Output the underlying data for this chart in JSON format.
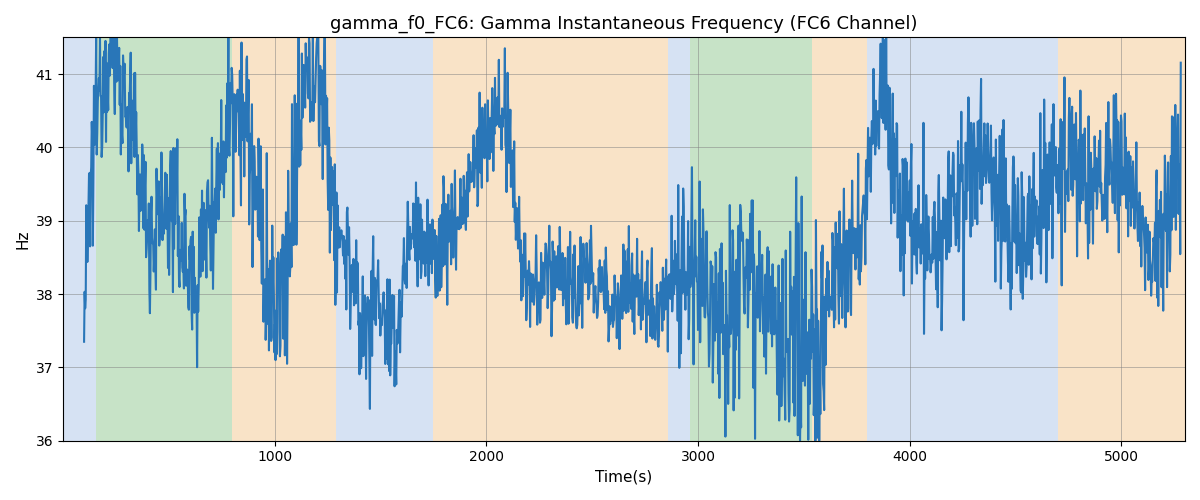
{
  "title": "gamma_f0_FC6: Gamma Instantaneous Frequency (FC6 Channel)",
  "xlabel": "Time(s)",
  "ylabel": "Hz",
  "ylim": [
    36,
    41.5
  ],
  "xlim": [
    0,
    5300
  ],
  "line_color": "#2976B8",
  "line_width": 1.5,
  "grid": true,
  "background_bands": [
    {
      "xmin": 0,
      "xmax": 155,
      "color": "#AEC6E8",
      "alpha": 0.5
    },
    {
      "xmin": 155,
      "xmax": 800,
      "color": "#90C990",
      "alpha": 0.5
    },
    {
      "xmin": 800,
      "xmax": 1290,
      "color": "#F5C990",
      "alpha": 0.5
    },
    {
      "xmin": 1290,
      "xmax": 1750,
      "color": "#AEC6E8",
      "alpha": 0.5
    },
    {
      "xmin": 1750,
      "xmax": 2860,
      "color": "#F5C990",
      "alpha": 0.5
    },
    {
      "xmin": 2860,
      "xmax": 2960,
      "color": "#AEC6E8",
      "alpha": 0.5
    },
    {
      "xmin": 2960,
      "xmax": 3540,
      "color": "#90C990",
      "alpha": 0.5
    },
    {
      "xmin": 3540,
      "xmax": 3800,
      "color": "#F5C990",
      "alpha": 0.5
    },
    {
      "xmin": 3800,
      "xmax": 4700,
      "color": "#AEC6E8",
      "alpha": 0.5
    },
    {
      "xmin": 4700,
      "xmax": 5300,
      "color": "#F5C990",
      "alpha": 0.5
    }
  ],
  "t_values": [
    100,
    200,
    290,
    370,
    430,
    480,
    530,
    580,
    630,
    680,
    730,
    790,
    850,
    890,
    950,
    1020,
    1090,
    1150,
    1220,
    1290,
    1350,
    1420,
    1490,
    1560,
    1620,
    1680,
    1740,
    1800,
    1860,
    1920,
    1980,
    2030,
    2080,
    2130,
    2180,
    2230,
    2280,
    2340,
    2400,
    2470,
    2540,
    2600,
    2660,
    2720,
    2780,
    2840,
    2900,
    2960,
    3020,
    3080,
    3140,
    3200,
    3260,
    3320,
    3380,
    3440,
    3500,
    3560,
    3620,
    3700,
    3780,
    3860,
    3940,
    4020,
    4100,
    4180,
    4260,
    4340,
    4420,
    4500,
    4580,
    4660,
    4740,
    4820,
    4900,
    4980,
    5060,
    5140,
    5220,
    5280
  ],
  "y_values": [
    37.5,
    41.2,
    40.7,
    39.5,
    38.8,
    39.2,
    39.0,
    38.5,
    38.2,
    39.0,
    39.5,
    40.6,
    40.5,
    39.8,
    38.4,
    37.8,
    39.3,
    40.8,
    40.9,
    39.0,
    38.5,
    37.5,
    38.0,
    37.2,
    38.5,
    38.8,
    38.5,
    38.8,
    39.0,
    39.5,
    40.0,
    40.3,
    40.4,
    39.4,
    38.3,
    38.0,
    38.2,
    38.4,
    38.0,
    38.2,
    38.1,
    37.9,
    38.1,
    38.0,
    37.9,
    38.0,
    38.3,
    38.2,
    38.0,
    38.2,
    37.8,
    38.3,
    38.5,
    37.8,
    37.2,
    37.0,
    37.5,
    37.2,
    38.0,
    38.5,
    39.0,
    40.8,
    39.5,
    39.0,
    38.5,
    39.0,
    39.5,
    39.8,
    39.3,
    38.8,
    39.0,
    39.5,
    39.8,
    39.6,
    39.5,
    39.7,
    39.3,
    38.5,
    39.2,
    40.0
  ]
}
